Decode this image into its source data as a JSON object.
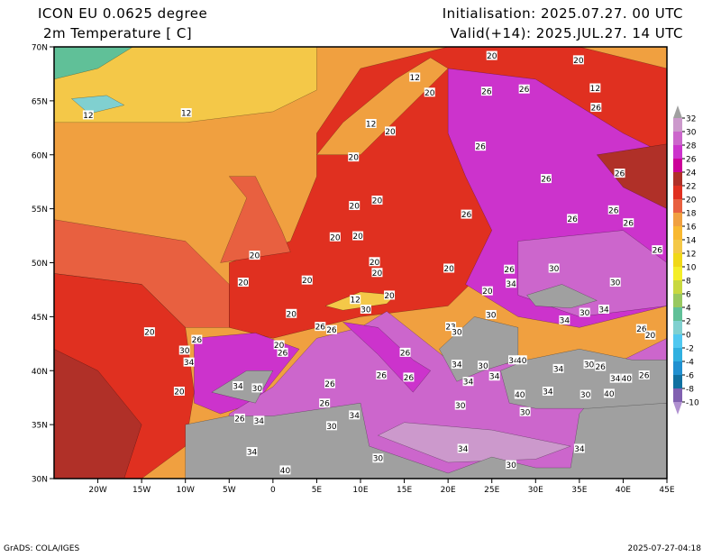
{
  "header": {
    "model": "ICON EU 0.0625 degree",
    "variable": "2m Temperature [ C]",
    "init": "Initialisation: 2025.07.27. 00 UTC",
    "valid": "Valid(+14): 2025.JUL.27. 14 UTC"
  },
  "footer": {
    "credit": "GrADS: COLA/IGES",
    "timestamp": "2025-07-27-04:18"
  },
  "map": {
    "lon_range": [
      -25,
      45
    ],
    "lat_range": [
      30,
      70
    ],
    "lat_ticks": [
      "30N",
      "35N",
      "40N",
      "45N",
      "50N",
      "55N",
      "60N",
      "65N",
      "70N"
    ],
    "lon_ticks": [
      "20W",
      "15W",
      "10W",
      "5W",
      "0",
      "5E",
      "10E",
      "15E",
      "20E",
      "25E",
      "30E",
      "35E",
      "40E",
      "45E"
    ],
    "contour_labels": [
      {
        "v": "20",
        "lon": 25.0,
        "lat": 69.2
      },
      {
        "v": "20",
        "lon": 34.9,
        "lat": 68.8
      },
      {
        "v": "12",
        "lon": 16.2,
        "lat": 67.2
      },
      {
        "v": "12",
        "lon": 36.8,
        "lat": 66.2
      },
      {
        "v": "20",
        "lon": 17.9,
        "lat": 65.8
      },
      {
        "v": "26",
        "lon": 24.4,
        "lat": 65.9
      },
      {
        "v": "26",
        "lon": 28.7,
        "lat": 66.1
      },
      {
        "v": "12",
        "lon": -21.1,
        "lat": 63.7
      },
      {
        "v": "12",
        "lon": -9.9,
        "lat": 63.9
      },
      {
        "v": "26",
        "lon": 36.9,
        "lat": 64.4
      },
      {
        "v": "12",
        "lon": 11.2,
        "lat": 62.9
      },
      {
        "v": "20",
        "lon": 13.4,
        "lat": 62.2
      },
      {
        "v": "26",
        "lon": 23.7,
        "lat": 60.8
      },
      {
        "v": "20",
        "lon": 9.2,
        "lat": 59.8
      },
      {
        "v": "26",
        "lon": 31.2,
        "lat": 57.8
      },
      {
        "v": "26",
        "lon": 39.6,
        "lat": 58.3
      },
      {
        "v": "20",
        "lon": 9.3,
        "lat": 55.3
      },
      {
        "v": "20",
        "lon": 11.9,
        "lat": 55.8
      },
      {
        "v": "26",
        "lon": 22.1,
        "lat": 54.5
      },
      {
        "v": "26",
        "lon": 34.2,
        "lat": 54.1
      },
      {
        "v": "26",
        "lon": 38.9,
        "lat": 54.9
      },
      {
        "v": "26",
        "lon": 40.6,
        "lat": 53.7
      },
      {
        "v": "20",
        "lon": 7.1,
        "lat": 52.4
      },
      {
        "v": "20",
        "lon": 9.7,
        "lat": 52.5
      },
      {
        "v": "26",
        "lon": 43.9,
        "lat": 51.2
      },
      {
        "v": "20",
        "lon": -2.1,
        "lat": 50.7
      },
      {
        "v": "20",
        "lon": 11.6,
        "lat": 50.1
      },
      {
        "v": "20",
        "lon": 11.9,
        "lat": 49.1
      },
      {
        "v": "20",
        "lon": 20.1,
        "lat": 49.5
      },
      {
        "v": "26",
        "lon": 27.0,
        "lat": 49.4
      },
      {
        "v": "30",
        "lon": 32.1,
        "lat": 49.5
      },
      {
        "v": "20",
        "lon": -3.4,
        "lat": 48.2
      },
      {
        "v": "20",
        "lon": 3.9,
        "lat": 48.4
      },
      {
        "v": "34",
        "lon": 27.2,
        "lat": 48.1
      },
      {
        "v": "30",
        "lon": 39.1,
        "lat": 48.2
      },
      {
        "v": "20",
        "lon": 24.5,
        "lat": 47.4
      },
      {
        "v": "12",
        "lon": 9.4,
        "lat": 46.6
      },
      {
        "v": "20",
        "lon": 13.3,
        "lat": 47.0
      },
      {
        "v": "30",
        "lon": 10.6,
        "lat": 45.7
      },
      {
        "v": "20",
        "lon": 2.1,
        "lat": 45.3
      },
      {
        "v": "30",
        "lon": 24.9,
        "lat": 45.2
      },
      {
        "v": "34",
        "lon": 33.3,
        "lat": 44.7
      },
      {
        "v": "30",
        "lon": 35.6,
        "lat": 45.4
      },
      {
        "v": "34",
        "lon": 37.8,
        "lat": 45.7
      },
      {
        "v": "26",
        "lon": 42.1,
        "lat": 43.9
      },
      {
        "v": "20",
        "lon": 43.1,
        "lat": 43.3
      },
      {
        "v": "20",
        "lon": -14.1,
        "lat": 43.6
      },
      {
        "v": "26",
        "lon": -8.7,
        "lat": 42.9
      },
      {
        "v": "30",
        "lon": -10.1,
        "lat": 41.9
      },
      {
        "v": "34",
        "lon": -9.6,
        "lat": 40.8
      },
      {
        "v": "20",
        "lon": 0.7,
        "lat": 42.4
      },
      {
        "v": "26",
        "lon": 1.1,
        "lat": 41.7
      },
      {
        "v": "26",
        "lon": 5.4,
        "lat": 44.1
      },
      {
        "v": "26",
        "lon": 6.7,
        "lat": 43.8
      },
      {
        "v": "23",
        "lon": 20.3,
        "lat": 44.1
      },
      {
        "v": "30",
        "lon": 21.0,
        "lat": 43.6
      },
      {
        "v": "26",
        "lon": 15.1,
        "lat": 41.7
      },
      {
        "v": "34",
        "lon": 21.0,
        "lat": 40.6
      },
      {
        "v": "30",
        "lon": 24.0,
        "lat": 40.5
      },
      {
        "v": "34",
        "lon": 27.5,
        "lat": 41.0
      },
      {
        "v": "40",
        "lon": 28.4,
        "lat": 41.0
      },
      {
        "v": "30",
        "lon": 36.1,
        "lat": 40.6
      },
      {
        "v": "26",
        "lon": 37.4,
        "lat": 40.4
      },
      {
        "v": "34",
        "lon": 39.1,
        "lat": 39.3
      },
      {
        "v": "40",
        "lon": 40.4,
        "lat": 39.3
      },
      {
        "v": "26",
        "lon": 42.4,
        "lat": 39.6
      },
      {
        "v": "34",
        "lon": 32.6,
        "lat": 40.2
      },
      {
        "v": "26",
        "lon": 12.4,
        "lat": 39.6
      },
      {
        "v": "26",
        "lon": 15.5,
        "lat": 39.4
      },
      {
        "v": "34",
        "lon": 22.3,
        "lat": 39.0
      },
      {
        "v": "34",
        "lon": 25.3,
        "lat": 39.5
      },
      {
        "v": "20",
        "lon": -10.7,
        "lat": 38.1
      },
      {
        "v": "34",
        "lon": -4.0,
        "lat": 38.6
      },
      {
        "v": "30",
        "lon": -1.8,
        "lat": 38.4
      },
      {
        "v": "26",
        "lon": 6.5,
        "lat": 38.8
      },
      {
        "v": "40",
        "lon": 28.2,
        "lat": 37.8
      },
      {
        "v": "34",
        "lon": 31.4,
        "lat": 38.1
      },
      {
        "v": "30",
        "lon": 35.7,
        "lat": 37.8
      },
      {
        "v": "40",
        "lon": 38.4,
        "lat": 37.9
      },
      {
        "v": "26",
        "lon": 5.9,
        "lat": 37.0
      },
      {
        "v": "34",
        "lon": 9.3,
        "lat": 35.9
      },
      {
        "v": "30",
        "lon": 21.4,
        "lat": 36.8
      },
      {
        "v": "30",
        "lon": 28.8,
        "lat": 36.2
      },
      {
        "v": "26",
        "lon": -3.8,
        "lat": 35.6
      },
      {
        "v": "34",
        "lon": -1.6,
        "lat": 35.4
      },
      {
        "v": "30",
        "lon": 6.7,
        "lat": 34.9
      },
      {
        "v": "34",
        "lon": -2.4,
        "lat": 32.5
      },
      {
        "v": "34",
        "lon": 21.7,
        "lat": 32.8
      },
      {
        "v": "34",
        "lon": 35.0,
        "lat": 32.8
      },
      {
        "v": "30",
        "lon": 12.0,
        "lat": 31.9
      },
      {
        "v": "30",
        "lon": 27.2,
        "lat": 31.3
      },
      {
        "v": "40",
        "lon": 1.4,
        "lat": 30.8
      }
    ]
  },
  "colorbar": {
    "labels": [
      "32",
      "30",
      "28",
      "26",
      "24",
      "22",
      "20",
      "18",
      "16",
      "14",
      "12",
      "10",
      "8",
      "6",
      "4",
      "2",
      "0",
      "-2",
      "-4",
      "-6",
      "-8",
      "-10"
    ],
    "colors": [
      "#a0a0a0",
      "#cc99cc",
      "#cc66cc",
      "#cc33cc",
      "#cc0099",
      "#b03028",
      "#e03020",
      "#e86040",
      "#f0a040",
      "#f8b830",
      "#f4c848",
      "#f0d818",
      "#f4ee28",
      "#c8d840",
      "#98c860",
      "#60c098",
      "#80d0d0",
      "#50c8f0",
      "#30b0e0",
      "#2090d0",
      "#1070a0",
      "#8060b0",
      "#b090d0"
    ]
  }
}
